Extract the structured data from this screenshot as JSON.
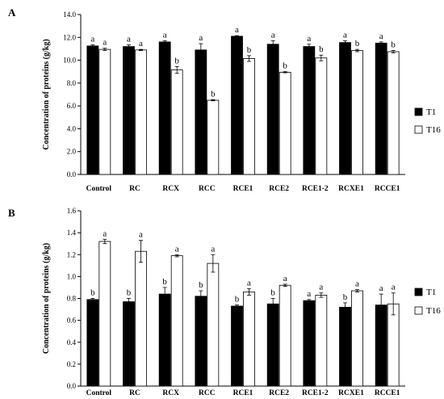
{
  "chart_data": [
    {
      "type": "bar",
      "panel_label": "A",
      "ylabel": "Concentration of proteins (g/kg)",
      "ylim": [
        0,
        14
      ],
      "yticks": [
        "0.0",
        "2.0",
        "4.0",
        "6.0",
        "8.0",
        "10.0",
        "12.0",
        "14.0"
      ],
      "categories": [
        "Control",
        "RC",
        "RCX",
        "RCC",
        "RCE1",
        "RCE2",
        "RCE1-2",
        "RCXE1",
        "RCCE1"
      ],
      "series": [
        {
          "name": "T1",
          "color": "#000000",
          "values": [
            11.25,
            11.2,
            11.6,
            10.9,
            12.1,
            11.4,
            11.2,
            11.55,
            11.5
          ],
          "errors": [
            0.1,
            0.15,
            0.1,
            0.55,
            0.05,
            0.3,
            0.2,
            0.15,
            0.1
          ],
          "letters": [
            "a",
            "a",
            "a",
            "a",
            "a",
            "a",
            "a",
            "a",
            "a"
          ]
        },
        {
          "name": "T16",
          "color": "#ffffff",
          "values": [
            10.95,
            10.9,
            9.15,
            6.5,
            10.15,
            8.95,
            10.2,
            10.85,
            10.75
          ],
          "errors": [
            0.1,
            0.05,
            0.3,
            0.05,
            0.25,
            0.05,
            0.25,
            0.1,
            0.1
          ],
          "letters": [
            "a",
            "a",
            "b",
            "b",
            "b",
            "b",
            "b",
            "b",
            "b"
          ]
        }
      ],
      "legend": "right"
    },
    {
      "type": "bar",
      "panel_label": "B",
      "ylabel": "Concentration of proteins (g/kg)",
      "ylim": [
        0,
        1.6
      ],
      "yticks": [
        "0.0",
        "0.2",
        "0.4",
        "0.6",
        "0.8",
        "1.0",
        "1.2",
        "1.4",
        "1.6"
      ],
      "categories": [
        "Control",
        "RC",
        "RCX",
        "RCC",
        "RCE1",
        "RCE2",
        "RCE1-2",
        "RCXE1",
        "RCCE1"
      ],
      "series": [
        {
          "name": "T1",
          "color": "#000000",
          "values": [
            0.79,
            0.77,
            0.84,
            0.82,
            0.73,
            0.75,
            0.78,
            0.72,
            0.74
          ],
          "errors": [
            0.01,
            0.03,
            0.06,
            0.05,
            0.01,
            0.05,
            0.01,
            0.04,
            0.1
          ],
          "letters": [
            "b",
            "b",
            "b",
            "b",
            "b",
            "b",
            "a",
            "b",
            "a"
          ]
        },
        {
          "name": "T16",
          "color": "#ffffff",
          "values": [
            1.32,
            1.23,
            1.19,
            1.12,
            0.86,
            0.92,
            0.83,
            0.87,
            0.75
          ],
          "errors": [
            0.02,
            0.1,
            0.01,
            0.08,
            0.03,
            0.01,
            0.02,
            0.01,
            0.1
          ],
          "letters": [
            "a",
            "a",
            "a",
            "a",
            "a",
            "a",
            "a",
            "a",
            "a"
          ]
        }
      ],
      "legend": "right"
    }
  ]
}
